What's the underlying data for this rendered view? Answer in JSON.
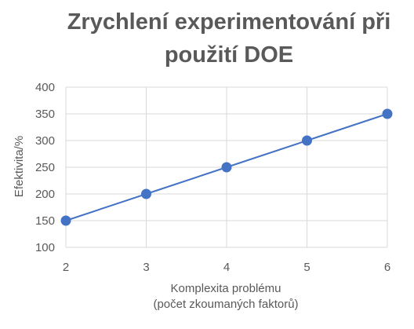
{
  "chart_data": {
    "type": "line",
    "title": [
      "Zrychlení experimentování při",
      "použití DOE"
    ],
    "xlabel": [
      "Komplexita problému",
      "(počet zkoumaných faktorů)"
    ],
    "ylabel": "Efektivita/%",
    "x": [
      2,
      3,
      4,
      5,
      6
    ],
    "series": [
      {
        "values": [
          150,
          200,
          250,
          300,
          350
        ]
      }
    ],
    "xlim": [
      2,
      6
    ],
    "ylim": [
      100,
      400
    ],
    "x_ticks": [
      "2",
      "3",
      "4",
      "5",
      "6"
    ],
    "y_ticks": [
      "100",
      "150",
      "200",
      "250",
      "300",
      "350",
      "400"
    ],
    "grid": true,
    "legend": "none",
    "colors": {
      "series": "#4472c4",
      "grid": "#d9d9d9",
      "text": "#595959"
    }
  }
}
